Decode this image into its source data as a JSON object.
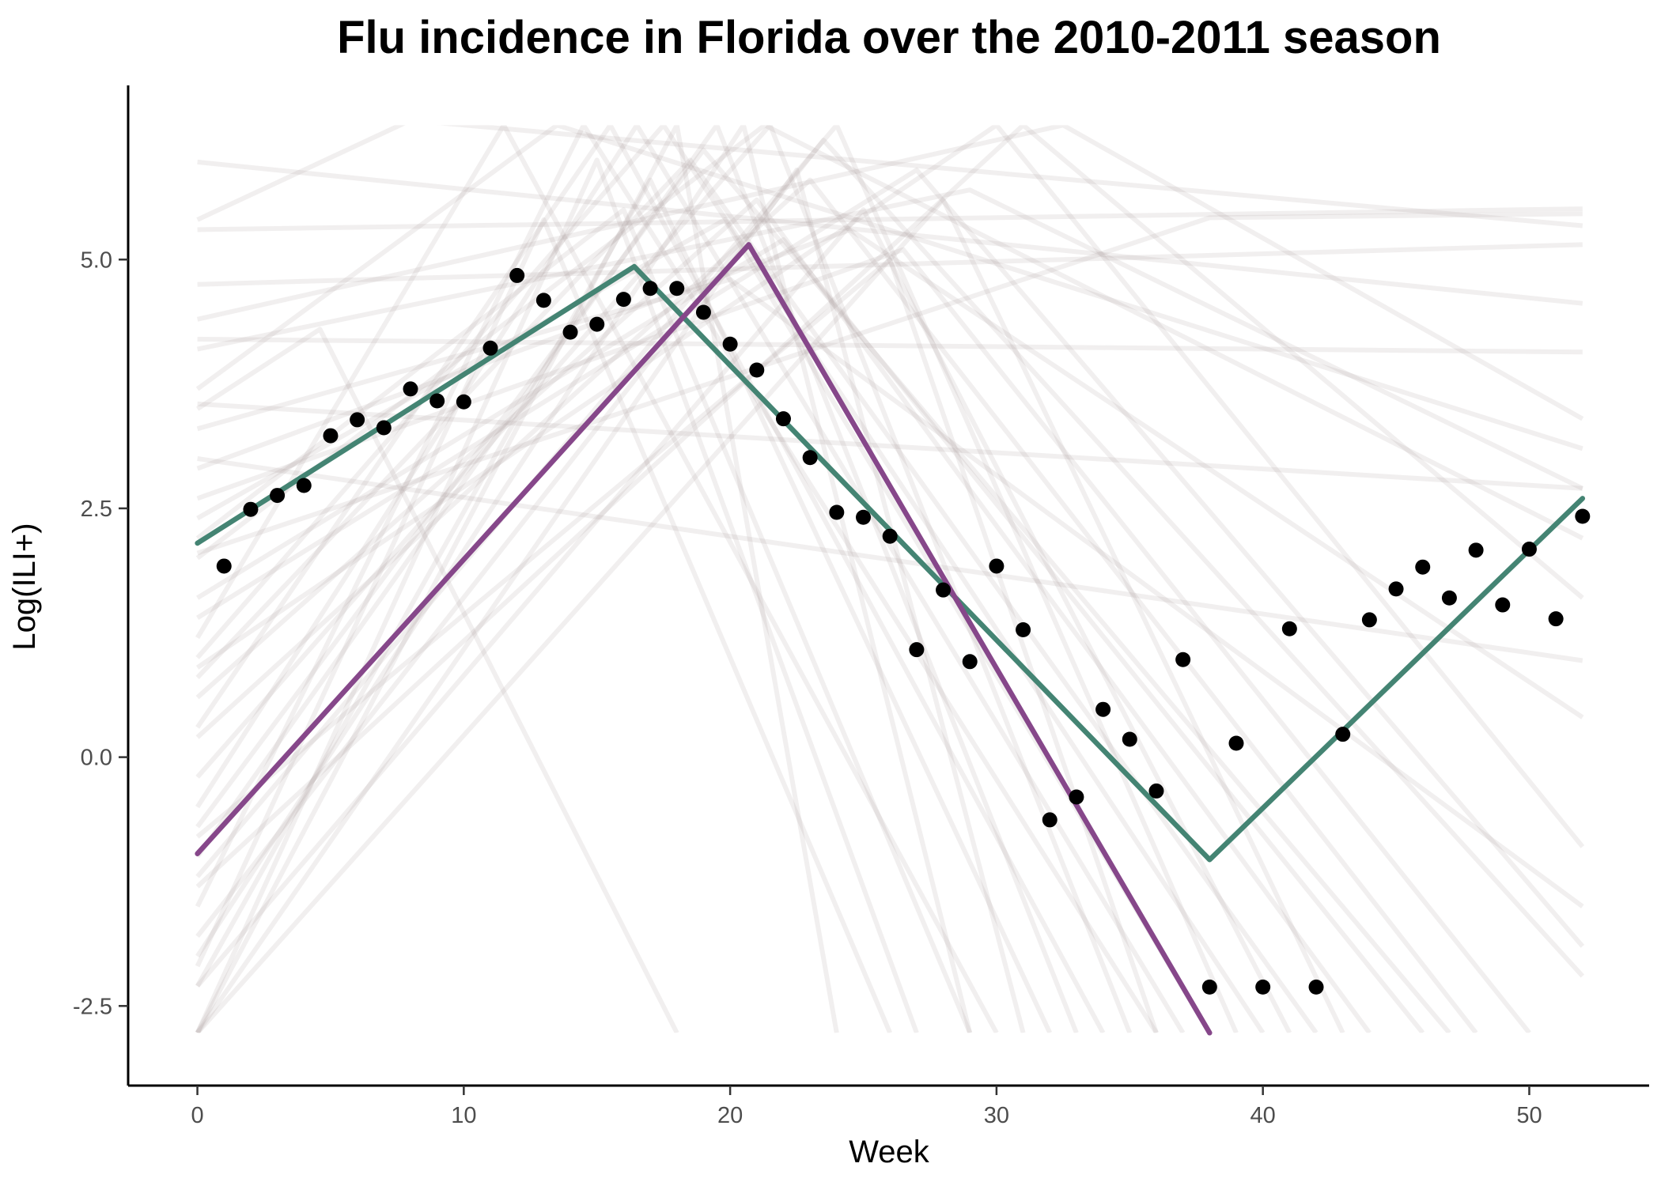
{
  "chart_data": {
    "type": "line",
    "title": "Flu incidence in Florida over the 2010-2011 season",
    "xlabel": "Week",
    "ylabel": "Log(ILI+)",
    "xlim": [
      -2.6,
      54.5
    ],
    "ylim": [
      -3.3,
      6.75
    ],
    "x_ticks": [
      0,
      10,
      20,
      30,
      40,
      50
    ],
    "x_tick_labels": [
      "0",
      "10",
      "20",
      "30",
      "40",
      "50"
    ],
    "y_ticks": [
      -2.5,
      0,
      2.5,
      5
    ],
    "y_tick_labels": [
      "-2.5",
      "0.0",
      "2.5",
      "5.0"
    ],
    "y_clip": [
      -2.77,
      6.35
    ],
    "grid": false,
    "legend": "none",
    "colors": {
      "observed": "#000000",
      "fit_green": "#448473",
      "fit_purple": "#86478a",
      "samples": "#a89a9a"
    },
    "observed": {
      "x": [
        1,
        2,
        3,
        4,
        5,
        6,
        7,
        8,
        9,
        10,
        11,
        12,
        13,
        14,
        15,
        16,
        17,
        18,
        19,
        20,
        21,
        22,
        23,
        24,
        25,
        26,
        27,
        28,
        29,
        30,
        31,
        32,
        33,
        34,
        35,
        36,
        37,
        38,
        39,
        40,
        41,
        42,
        43,
        44,
        45,
        46,
        47,
        48,
        49,
        50,
        51,
        52
      ],
      "y": [
        1.92,
        2.49,
        2.63,
        2.73,
        3.23,
        3.39,
        3.31,
        3.7,
        3.58,
        3.57,
        4.11,
        4.84,
        4.59,
        4.27,
        4.35,
        4.6,
        4.71,
        4.71,
        4.47,
        4.15,
        3.89,
        3.4,
        3.01,
        2.46,
        2.41,
        2.22,
        1.08,
        1.68,
        0.96,
        1.92,
        1.28,
        -0.63,
        -0.4,
        0.48,
        0.18,
        -0.34,
        0.98,
        -2.31,
        0.14,
        -2.31,
        1.29,
        -2.31,
        0.23,
        1.38,
        1.69,
        1.91,
        1.6,
        2.08,
        1.53,
        2.09,
        1.39,
        2.42
      ]
    },
    "series": [
      {
        "x": [
          0,
          16.4,
          38,
          52
        ],
        "y": [
          2.15,
          4.93,
          -1.03,
          2.6
        ]
      },
      {
        "x": [
          0,
          20.7,
          38
        ],
        "y": [
          -0.97,
          5.15,
          -2.77
        ]
      }
    ],
    "posterior_samples": [
      {
        "x": [
          0,
          52
        ],
        "y": [
          5.98,
          4.56
        ]
      },
      {
        "x": [
          0,
          52
        ],
        "y": [
          5.3,
          5.51
        ]
      },
      {
        "x": [
          0,
          52
        ],
        "y": [
          4.75,
          5.15
        ]
      },
      {
        "x": [
          0,
          52
        ],
        "y": [
          4.2,
          4.07
        ]
      },
      {
        "x": [
          0,
          52
        ],
        "y": [
          3.55,
          2.7
        ]
      },
      {
        "x": [
          0,
          52
        ],
        "y": [
          3.0,
          0.97
        ]
      },
      {
        "x": [
          0,
          29,
          52
        ],
        "y": [
          4.1,
          5.7,
          2.7
        ]
      },
      {
        "x": [
          0,
          38,
          52
        ],
        "y": [
          2.05,
          5.42,
          5.46
        ]
      },
      {
        "x": [
          0,
          8,
          52
        ],
        "y": [
          5.4,
          6.4,
          5.34
        ]
      },
      {
        "x": [
          0,
          4.6,
          18
        ],
        "y": [
          3.5,
          4.3,
          -2.77
        ]
      },
      {
        "x": [
          0,
          11.5,
          30
        ],
        "y": [
          1.2,
          6.35,
          -2.77
        ]
      },
      {
        "x": [
          0,
          13.5,
          52
        ],
        "y": [
          3.7,
          6.35,
          3.1
        ]
      },
      {
        "x": [
          0,
          14.5,
          36
        ],
        "y": [
          -1.5,
          6.35,
          -2.77
        ]
      },
      {
        "x": [
          0,
          15.5,
          34
        ],
        "y": [
          0.3,
          6.35,
          -2.77
        ]
      },
      {
        "x": [
          0,
          16.5,
          37
        ],
        "y": [
          -0.5,
          6.35,
          -2.77
        ]
      },
      {
        "x": [
          0,
          17.5,
          40
        ],
        "y": [
          1.0,
          6.35,
          -2.77
        ]
      },
      {
        "x": [
          0,
          17,
          32
        ],
        "y": [
          -2.3,
          5.8,
          -2.77
        ]
      },
      {
        "x": [
          0,
          18.5,
          42
        ],
        "y": [
          0.8,
          6.0,
          -2.77
        ]
      },
      {
        "x": [
          0,
          19.5,
          33
        ],
        "y": [
          -1.0,
          6.35,
          -2.77
        ]
      },
      {
        "x": [
          0,
          19.8,
          38
        ],
        "y": [
          2.4,
          5.4,
          -2.77
        ]
      },
      {
        "x": [
          0,
          20.5,
          29
        ],
        "y": [
          -2.0,
          6.35,
          -2.77
        ]
      },
      {
        "x": [
          0,
          21,
          44
        ],
        "y": [
          0.6,
          5.6,
          -2.77
        ]
      },
      {
        "x": [
          0,
          21.5,
          35
        ],
        "y": [
          -0.2,
          6.35,
          -2.77
        ]
      },
      {
        "x": [
          0,
          22,
          46
        ],
        "y": [
          1.6,
          5.2,
          -2.77
        ]
      },
      {
        "x": [
          0,
          22.5,
          31
        ],
        "y": [
          -2.77,
          5.9,
          -2.77
        ]
      },
      {
        "x": [
          0,
          23,
          48
        ],
        "y": [
          0.2,
          5.8,
          -2.77
        ]
      },
      {
        "x": [
          0,
          24,
          39
        ],
        "y": [
          -1.2,
          6.35,
          -2.77
        ]
      },
      {
        "x": [
          0,
          24.5,
          52
        ],
        "y": [
          2.9,
          5.3,
          0.4
        ]
      },
      {
        "x": [
          0,
          25,
          41
        ],
        "y": [
          -2.3,
          5.5,
          -2.77
        ]
      },
      {
        "x": [
          0,
          26,
          36
        ],
        "y": [
          -0.8,
          5.0,
          -2.77
        ]
      },
      {
        "x": [
          0,
          27,
          52
        ],
        "y": [
          1.4,
          5.9,
          -1.9
        ]
      },
      {
        "x": [
          0,
          28,
          43
        ],
        "y": [
          -2.77,
          5.6,
          -2.77
        ]
      },
      {
        "x": [
          0,
          30,
          52
        ],
        "y": [
          0.9,
          6.35,
          -0.9
        ]
      },
      {
        "x": [
          0,
          15,
          27
        ],
        "y": [
          -2.77,
          6.0,
          -2.77
        ]
      },
      {
        "x": [
          0,
          13,
          26
        ],
        "y": [
          -2.1,
          5.4,
          -2.77
        ]
      },
      {
        "x": [
          0,
          18,
          24
        ],
        "y": [
          -2.77,
          6.35,
          -2.77
        ]
      },
      {
        "x": [
          0,
          16,
          29
        ],
        "y": [
          2.2,
          5.5,
          -2.77
        ]
      },
      {
        "x": [
          0,
          23.5,
          52
        ],
        "y": [
          -1.8,
          6.2,
          -2.2
        ]
      },
      {
        "x": [
          0,
          20,
          52
        ],
        "y": [
          3.3,
          4.8,
          -1.5
        ]
      },
      {
        "x": [
          0,
          19,
          47
        ],
        "y": [
          -0.7,
          6.1,
          -2.77
        ]
      },
      {
        "x": [
          0,
          26.5,
          50
        ],
        "y": [
          2.6,
          5.1,
          -2.77
        ]
      },
      {
        "x": [
          0,
          31,
          52
        ],
        "y": [
          -1.3,
          6.35,
          1.6
        ]
      },
      {
        "x": [
          0,
          32.5,
          52
        ],
        "y": [
          4.4,
          6.35,
          3.4
        ]
      },
      {
        "x": [
          0,
          21.3,
          52
        ],
        "y": [
          2.0,
          6.35,
          2.2
        ]
      }
    ]
  }
}
